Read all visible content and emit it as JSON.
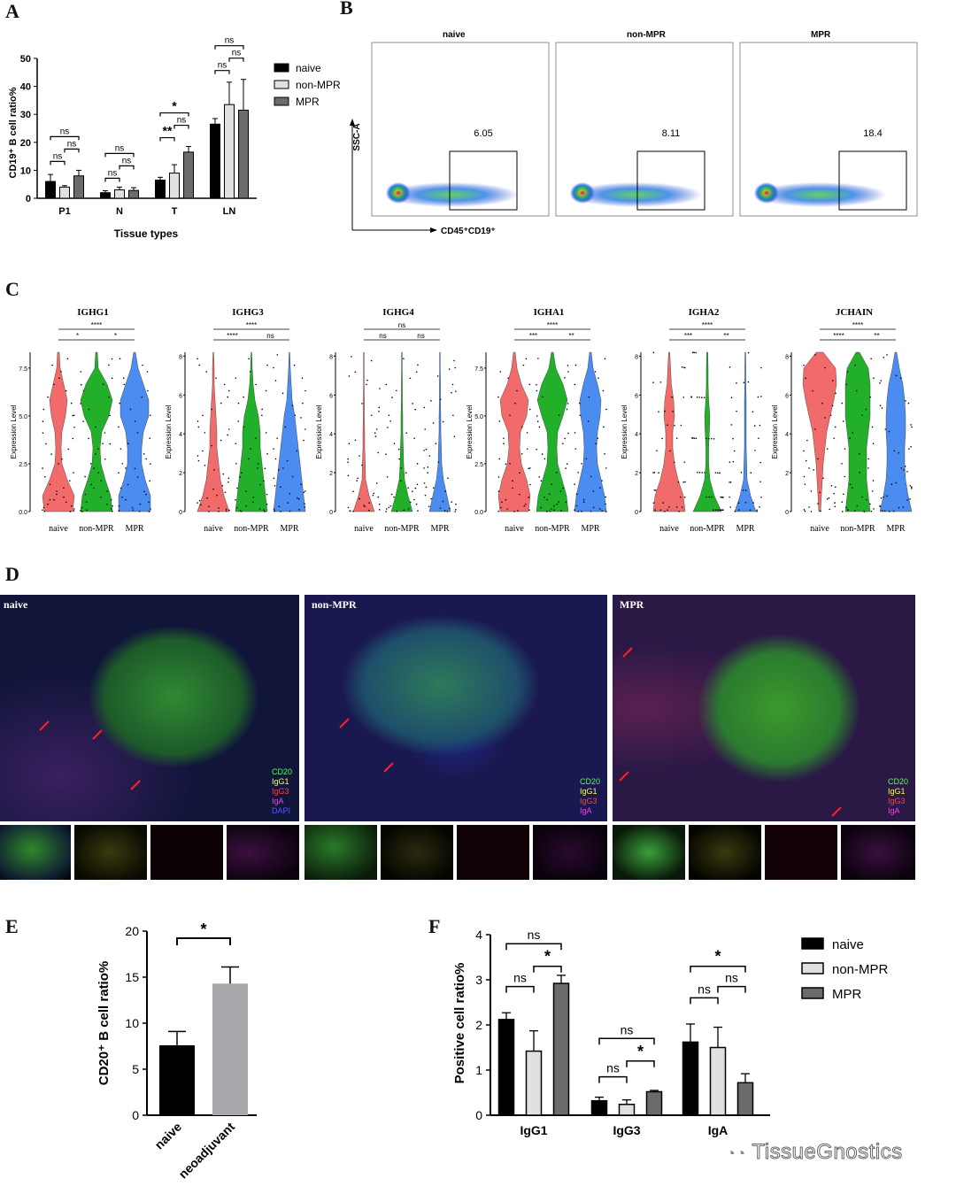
{
  "panel_labels": {
    "A": "A",
    "B": "B",
    "C": "C",
    "D": "D",
    "E": "E",
    "F": "F"
  },
  "colors": {
    "naive": "#000000",
    "nonMPR": "#e0e0e0",
    "MPR": "#6b6b6b",
    "E_naive": "#000000",
    "E_neo": "#a9a9ad",
    "violin_naive": "#f26b6b",
    "violin_nonMPR": "#22b02a",
    "violin_MPR": "#4a8cf0"
  },
  "panelA": {
    "ylabel": "CD19⁺ B cell ratio%",
    "xlabel": "Tissue types",
    "legend": [
      "naive",
      "non-MPR",
      "MPR"
    ],
    "chart_data": {
      "type": "bar",
      "categories": [
        "P1",
        "N",
        "T",
        "LN"
      ],
      "series": [
        {
          "name": "naive",
          "values": [
            6,
            2,
            6.5,
            26.5
          ],
          "err": [
            2.5,
            0.7,
            1,
            2
          ]
        },
        {
          "name": "non-MPR",
          "values": [
            4,
            3,
            9,
            33.5
          ],
          "err": [
            0.5,
            1,
            3,
            8
          ]
        },
        {
          "name": "MPR",
          "values": [
            8,
            2.8,
            16.5,
            31.5
          ],
          "err": [
            2,
            1,
            2,
            11
          ]
        }
      ],
      "ylim": [
        0,
        50
      ],
      "yticks": [
        "0",
        "10",
        "20",
        "30",
        "40",
        "50"
      ],
      "signif": [
        "ns",
        "ns",
        "ns",
        "ns",
        "ns",
        "ns",
        "**",
        "ns",
        "*",
        "ns",
        "ns",
        "ns"
      ]
    }
  },
  "panelB": {
    "titles": [
      "naive",
      "non-MPR",
      "MPR"
    ],
    "gates": [
      "6.05",
      "8.11",
      "18.4"
    ],
    "ylabel": "SSC-A",
    "xlabel": "CD45⁺CD19⁺"
  },
  "panelC": {
    "ylabel": "Expression Level",
    "groups": [
      "naive",
      "non-MPR",
      "MPR"
    ],
    "genes": [
      {
        "name": "IGHG1",
        "yticks": [
          "0.0",
          "2.5",
          "5.0",
          "7.5"
        ],
        "sig": [
          "****",
          "*",
          "*"
        ]
      },
      {
        "name": "IGHG3",
        "yticks": [
          "0",
          "2",
          "4",
          "6",
          "8"
        ],
        "sig": [
          "****",
          "****",
          "ns"
        ]
      },
      {
        "name": "IGHG4",
        "yticks": [
          "0",
          "2",
          "4",
          "6",
          "8"
        ],
        "sig": [
          "ns",
          "ns",
          "ns"
        ]
      },
      {
        "name": "IGHA1",
        "yticks": [
          "0.0",
          "2.5",
          "5.0",
          "7.5"
        ],
        "sig": [
          "****",
          "***",
          "**"
        ]
      },
      {
        "name": "IGHA2",
        "yticks": [
          "0",
          "2",
          "4",
          "6",
          "8"
        ],
        "sig": [
          "****",
          "***",
          "**"
        ]
      },
      {
        "name": "JCHAIN",
        "yticks": [
          "0",
          "2",
          "4",
          "6",
          "8"
        ],
        "sig": [
          "****",
          "****",
          "**"
        ]
      }
    ]
  },
  "panelD": {
    "titles": [
      "naive",
      "non-MPR",
      "MPR"
    ],
    "legend": [
      "CD20",
      "IgG1",
      "IgG3",
      "IgA",
      "DAPI"
    ]
  },
  "panelE": {
    "ylabel": "CD20⁺ B cell ratio%",
    "chart_data": {
      "type": "bar",
      "categories": [
        "naive",
        "neoadjuvant"
      ],
      "values": [
        7.6,
        14.3
      ],
      "err": [
        1.5,
        1.8
      ],
      "ylim": [
        0,
        20
      ],
      "yticks": [
        "0",
        "5",
        "10",
        "15",
        "20"
      ],
      "signif": "*"
    }
  },
  "panelF": {
    "ylabel": "Positive cell ratio%",
    "legend": [
      "naive",
      "non-MPR",
      "MPR"
    ],
    "chart_data": {
      "type": "bar",
      "categories": [
        "IgG1",
        "IgG3",
        "IgA"
      ],
      "series": [
        {
          "name": "naive",
          "values": [
            2.12,
            0.32,
            1.62
          ],
          "err": [
            0.15,
            0.08,
            0.4
          ]
        },
        {
          "name": "non-MPR",
          "values": [
            1.42,
            0.24,
            1.5
          ],
          "err": [
            0.45,
            0.1,
            0.45
          ]
        },
        {
          "name": "MPR",
          "values": [
            2.92,
            0.52,
            0.72
          ],
          "err": [
            0.18,
            0.03,
            0.2
          ]
        }
      ],
      "ylim": [
        0,
        4
      ],
      "yticks": [
        "0",
        "1",
        "2",
        "3",
        "4"
      ],
      "signif": [
        "ns",
        "ns",
        "*",
        "ns",
        "ns",
        "*",
        "*",
        "ns",
        "ns"
      ]
    }
  },
  "watermark": "TissueGnostics"
}
